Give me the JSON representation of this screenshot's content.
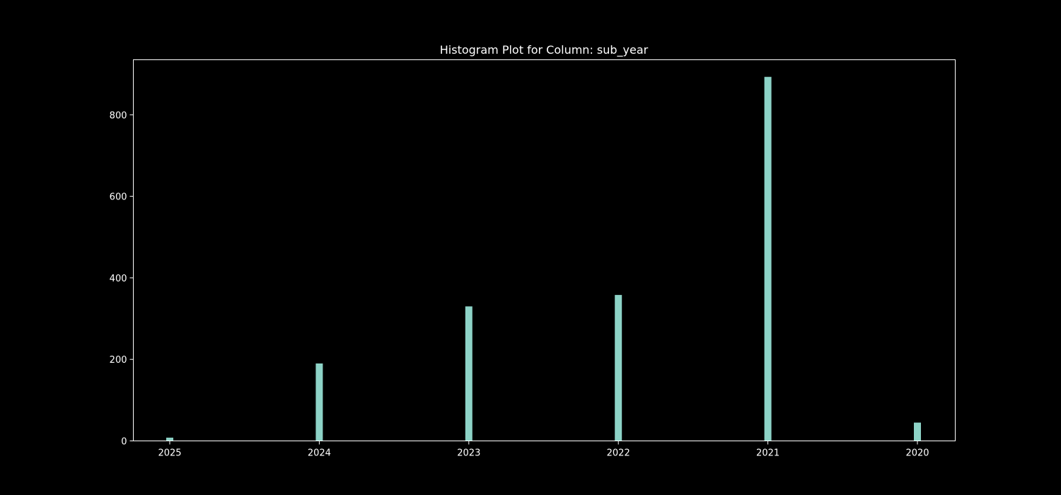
{
  "chart_data": {
    "type": "bar",
    "title": "Histogram Plot for Column: sub_year",
    "xlabel": "",
    "ylabel": "",
    "categories": [
      "2025",
      "2024",
      "2023",
      "2022",
      "2021",
      "2020"
    ],
    "values": [
      8,
      190,
      330,
      358,
      893,
      45
    ],
    "ylim": [
      0,
      935
    ],
    "yticks": [
      0,
      200,
      400,
      600,
      800
    ],
    "grid": false,
    "legend": "none",
    "colors": {
      "background": "#000000",
      "bar": "#8dd3c7",
      "axes": "#ffffff",
      "text": "#ffffff"
    }
  }
}
